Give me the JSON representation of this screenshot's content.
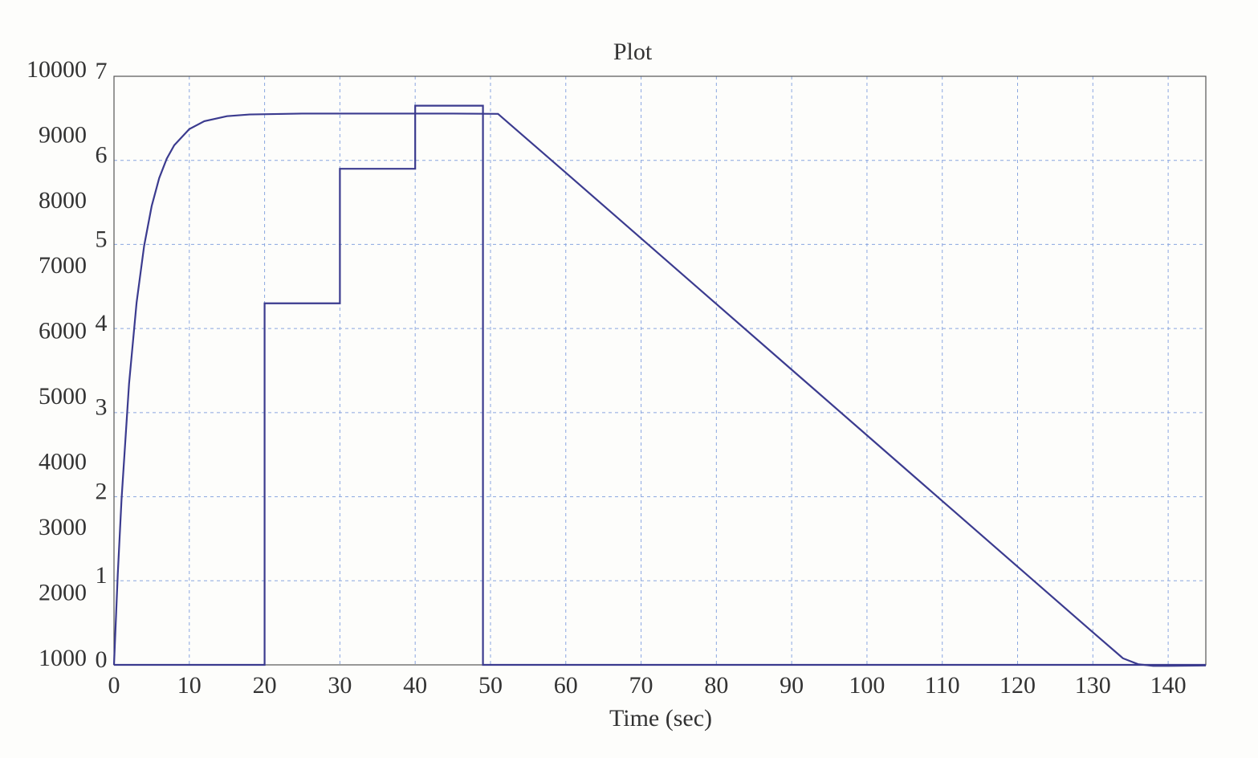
{
  "chart_data": {
    "type": "line",
    "title": "Plot",
    "x_label": "Time (sec)",
    "xlim": [
      0,
      145
    ],
    "xticks": [
      0,
      10,
      20,
      30,
      40,
      50,
      60,
      70,
      80,
      90,
      100,
      110,
      120,
      130,
      140
    ],
    "ylim": [
      1000,
      10000
    ],
    "yticks": [
      1000,
      2000,
      3000,
      4000,
      5000,
      6000,
      7000,
      8000,
      9000,
      10000
    ],
    "y2lim": [
      0,
      7
    ],
    "y2ticks": [
      0,
      1,
      2,
      3,
      4,
      5,
      6,
      7
    ],
    "grid": true,
    "series": [
      {
        "color": "#3b3b8f",
        "axis": "y",
        "x": [
          0,
          0.5,
          1,
          2,
          3,
          4,
          5,
          6,
          7,
          8,
          10,
          12,
          15,
          18,
          25,
          35,
          45,
          51,
          60,
          70,
          80,
          90,
          100,
          110,
          120,
          130,
          134,
          136,
          138,
          140,
          145
        ],
        "values": [
          1000,
          2383,
          3529,
          5300,
          6539,
          7406,
          8014,
          8443,
          8739,
          8946,
          9193,
          9314,
          9390,
          9416,
          9430,
          9430,
          9430,
          9425,
          8526,
          7522,
          6518,
          5514,
          4510,
          3506,
          2502,
          1498,
          1100,
          1010,
          985,
          985,
          990
        ]
      },
      {
        "color": "#3b3b8f",
        "axis": "y2",
        "x": [
          0,
          20,
          20,
          30,
          30,
          40,
          40,
          49,
          49,
          145
        ],
        "values": [
          0,
          0,
          4.3,
          4.3,
          5.9,
          5.9,
          6.65,
          6.65,
          0,
          0
        ]
      }
    ]
  }
}
